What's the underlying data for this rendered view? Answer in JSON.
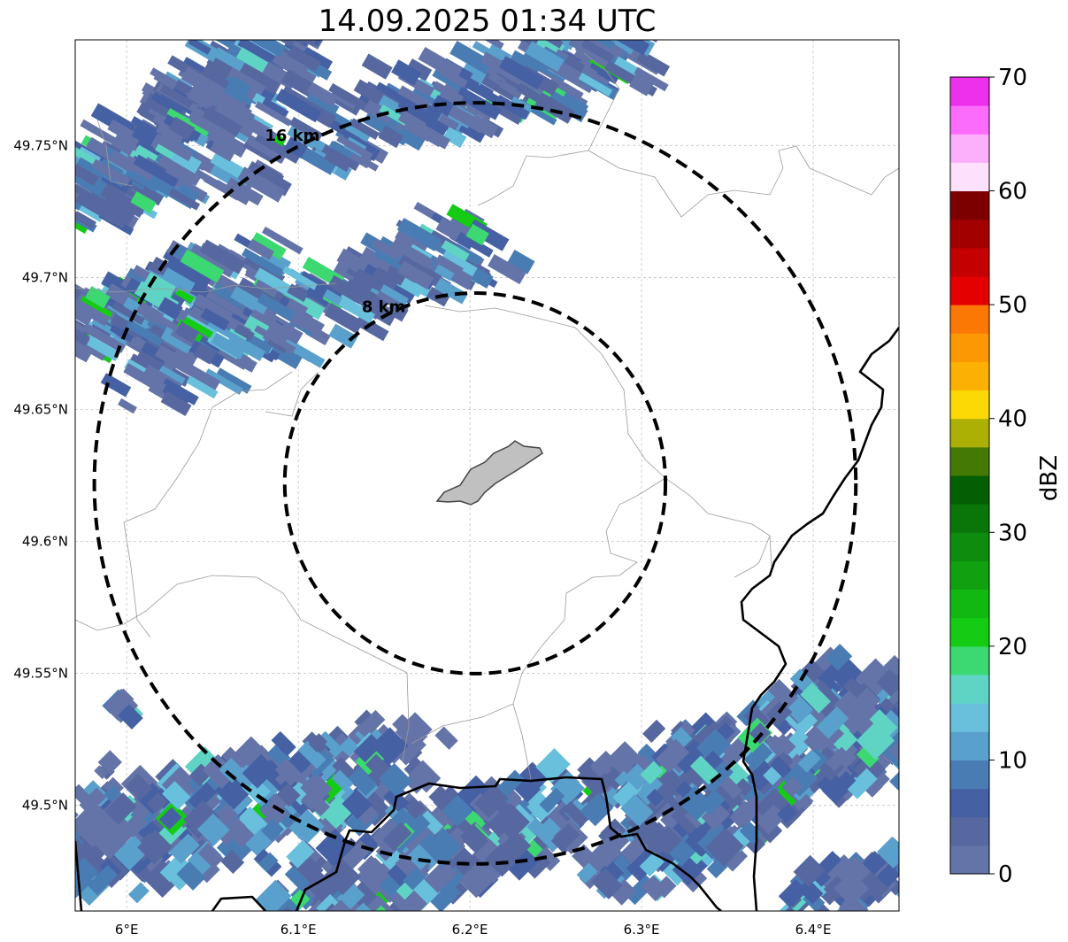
{
  "title": "14.09.2025 01:34 UTC",
  "map": {
    "lon_range": [
      5.97,
      6.45
    ],
    "lat_range": [
      49.46,
      49.79
    ],
    "lon_ticks": [
      {
        "value": 6.0,
        "label": "6°E"
      },
      {
        "value": 6.1,
        "label": "6.1°E"
      },
      {
        "value": 6.2,
        "label": "6.2°E"
      },
      {
        "value": 6.3,
        "label": "6.3°E"
      },
      {
        "value": 6.4,
        "label": "6.4°E"
      }
    ],
    "lat_ticks": [
      {
        "value": 49.75,
        "label": "49.75°N"
      },
      {
        "value": 49.7,
        "label": "49.7°N"
      },
      {
        "value": 49.65,
        "label": "49.65°N"
      },
      {
        "value": 49.6,
        "label": "49.6°N"
      },
      {
        "value": 49.55,
        "label": "49.55°N"
      },
      {
        "value": 49.5,
        "label": "49.5°N"
      }
    ],
    "grid": true,
    "center": {
      "lon": 6.203,
      "lat": 49.622
    },
    "range_rings": [
      {
        "radius_km": 8,
        "label": "8 km"
      },
      {
        "radius_km": 16,
        "label": "16 km"
      }
    ],
    "colors": {
      "ring": "#000000",
      "boundary": "#000000",
      "minor_boundary": "#9a9a9a",
      "city_fill": "#c0c0c0"
    }
  },
  "colorbar": {
    "label": "dBZ",
    "ticks": [
      {
        "value": 0,
        "label": "0"
      },
      {
        "value": 10,
        "label": "10"
      },
      {
        "value": 20,
        "label": "20"
      },
      {
        "value": 30,
        "label": "30"
      },
      {
        "value": 40,
        "label": "40"
      },
      {
        "value": 50,
        "label": "50"
      },
      {
        "value": 60,
        "label": "60"
      },
      {
        "value": 70,
        "label": "70"
      }
    ],
    "min": 0,
    "max": 70,
    "colors": [
      "#6474a8",
      "#56689f",
      "#4660a4",
      "#4a7cb4",
      "#5aa0cc",
      "#68c0dc",
      "#60d4c4",
      "#3cd872",
      "#14cc14",
      "#12b812",
      "#10a010",
      "#0e8c0e",
      "#0a760a",
      "#045e04",
      "#447a04",
      "#acb004",
      "#fcd804",
      "#fcb004",
      "#fc9804",
      "#fc7804",
      "#e40000",
      "#c40000",
      "#a20000",
      "#7c0000",
      "#fce0fc",
      "#fcb0fc",
      "#fc6cfc",
      "#ec30ec"
    ]
  }
}
